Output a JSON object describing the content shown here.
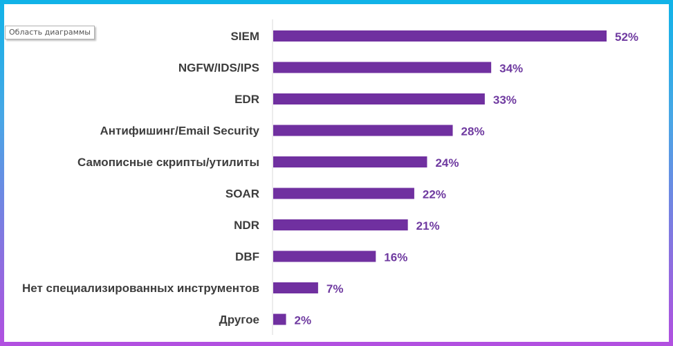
{
  "tooltip": {
    "label": "Область диаграммы"
  },
  "colors": {
    "bar": "#7030a0",
    "value_label": "#6f3aa0",
    "category_label": "#3d3d3d",
    "axis": "#d9d9d9",
    "frame_top": "#10b3e8",
    "frame_bottom": "#b24fe0"
  },
  "chart_data": {
    "type": "bar",
    "orientation": "horizontal",
    "categories": [
      "SIEM",
      "NGFW/IDS/IPS",
      "EDR",
      "Антифишинг/Email Security",
      "Самописные скрипты/утилиты",
      "SOAR",
      "NDR",
      "DBF",
      "Нет специализированных инструментов",
      "Другое"
    ],
    "values": [
      52,
      34,
      33,
      28,
      24,
      22,
      21,
      16,
      7,
      2
    ],
    "value_labels": [
      "52%",
      "34%",
      "33%",
      "28%",
      "24%",
      "22%",
      "21%",
      "16%",
      "7%",
      "2%"
    ],
    "unit": "%",
    "xlim": [
      0,
      60
    ],
    "grid": false,
    "legend": "none"
  }
}
